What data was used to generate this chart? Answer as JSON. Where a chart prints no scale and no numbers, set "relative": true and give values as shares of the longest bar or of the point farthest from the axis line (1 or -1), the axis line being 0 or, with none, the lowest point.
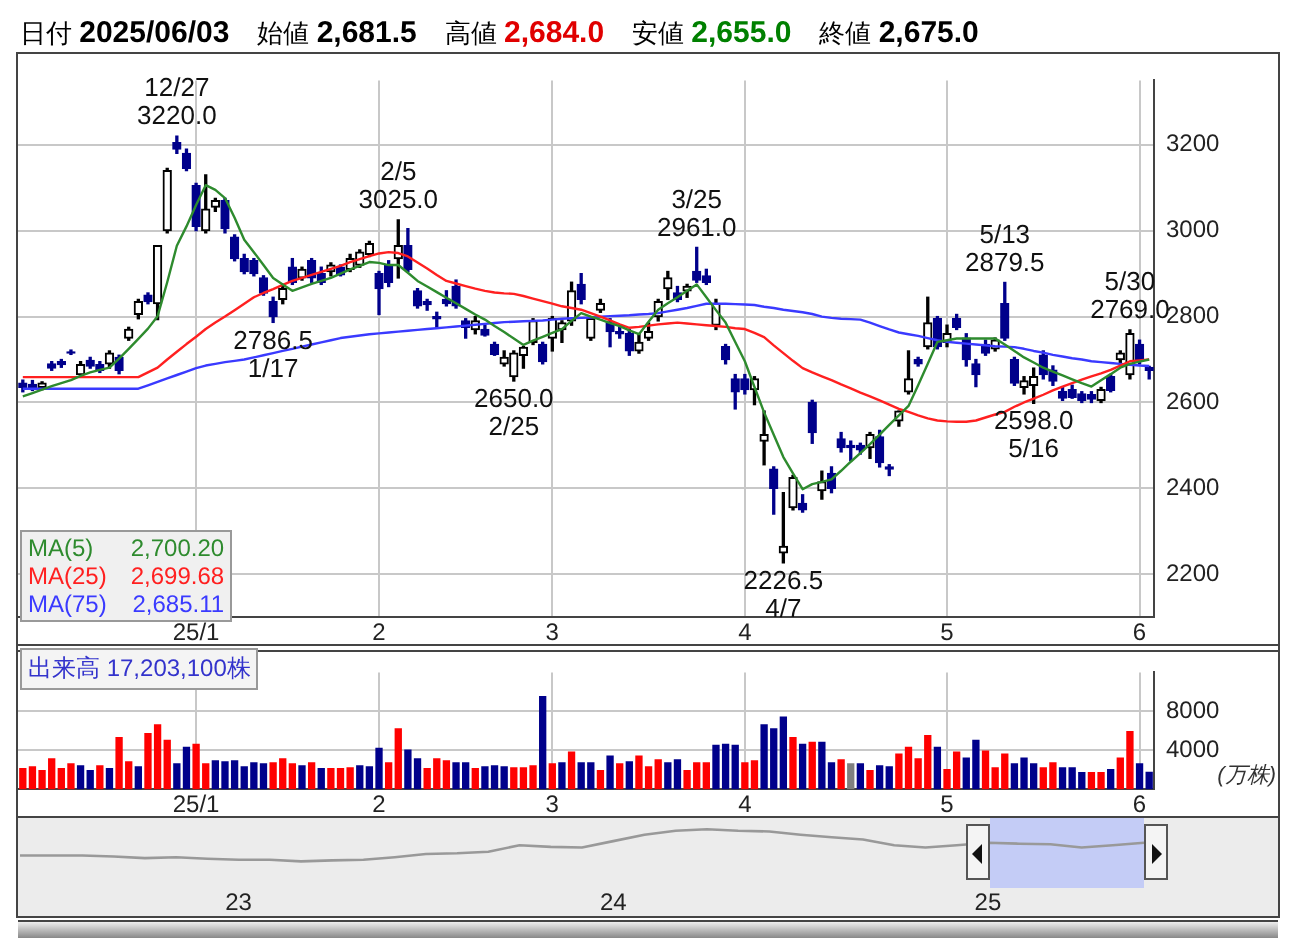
{
  "chart_data": [
    {
      "type": "candlestick",
      "annotations": [
        "日付 2025/06/03",
        "始値 2,681.5",
        "高値 2,684.0",
        "安値 2,655.0",
        "終値 2,675.0",
        {
          "text": "12/27\n3220.0",
          "y": 3220
        },
        {
          "text": "2786.5\n1/17",
          "y": 2786.5
        },
        {
          "text": "2/5\n3025.0",
          "y": 3025
        },
        {
          "text": "2650.0\n2/25",
          "y": 2650
        },
        {
          "text": "3/25\n2961.0",
          "y": 2961
        },
        {
          "text": "2226.5\n4/7",
          "y": 2226.5
        },
        {
          "text": "5/13\n2879.5",
          "y": 2879.5
        },
        {
          "text": "2598.0\n5/16",
          "y": 2598
        },
        {
          "text": "5/30\n2769.0",
          "y": 2769
        }
      ],
      "categories": [
        null,
        null,
        null,
        null,
        null,
        null,
        null,
        null,
        null,
        null,
        null,
        null,
        null,
        null,
        null,
        null,
        null,
        null,
        "25/1",
        null,
        null,
        null,
        null,
        null,
        null,
        null,
        null,
        null,
        null,
        null,
        null,
        null,
        null,
        null,
        null,
        null,
        null,
        "2",
        null,
        null,
        null,
        null,
        null,
        null,
        null,
        null,
        null,
        null,
        null,
        null,
        null,
        null,
        null,
        null,
        null,
        "3",
        null,
        null,
        null,
        null,
        null,
        null,
        null,
        null,
        null,
        null,
        null,
        null,
        null,
        null,
        null,
        null,
        null,
        null,
        null,
        "4",
        null,
        null,
        null,
        null,
        null,
        null,
        null,
        null,
        null,
        null,
        null,
        null,
        null,
        null,
        null,
        null,
        null,
        null,
        null,
        null,
        "5",
        null,
        null,
        null,
        null,
        null,
        null,
        null,
        null,
        null,
        null,
        null,
        null,
        null,
        null,
        null,
        null,
        null,
        null,
        null,
        "6",
        null
      ],
      "ohlc": [
        [
          2645,
          2652,
          2625,
          2635
        ],
        [
          2642,
          2651,
          2628,
          2635
        ],
        [
          2635,
          2648,
          2630,
          2645
        ],
        [
          2690,
          2695,
          2675,
          2680
        ],
        [
          2695,
          2700,
          2682,
          2688
        ],
        [
          2718,
          2722,
          2712,
          2715
        ],
        [
          2665,
          2695,
          2660,
          2688
        ],
        [
          2698,
          2705,
          2680,
          2685
        ],
        [
          2688,
          2695,
          2670,
          2675
        ],
        [
          2690,
          2720,
          2680,
          2715
        ],
        [
          2705,
          2710,
          2667,
          2675
        ],
        [
          2750,
          2775,
          2745,
          2770
        ],
        [
          2805,
          2840,
          2795,
          2835
        ],
        [
          2850,
          2855,
          2830,
          2835
        ],
        [
          2830,
          2965,
          2793,
          2965
        ],
        [
          3000,
          3145,
          2995,
          3140
        ],
        [
          3205,
          3220,
          3180,
          3190
        ],
        [
          3180,
          3190,
          3140,
          3145
        ],
        [
          3105,
          3110,
          3000,
          3010
        ],
        [
          3000,
          3130,
          2995,
          3050
        ],
        [
          3055,
          3075,
          3045,
          3070
        ],
        [
          3070,
          3075,
          2995,
          3005
        ],
        [
          2985,
          2990,
          2930,
          2935
        ],
        [
          2935,
          2945,
          2900,
          2905
        ],
        [
          2930,
          2935,
          2895,
          2900
        ],
        [
          2890,
          2895,
          2850,
          2855
        ],
        [
          2835,
          2845,
          2786.5,
          2800
        ],
        [
          2840,
          2870,
          2830,
          2865
        ],
        [
          2915,
          2935,
          2875,
          2880
        ],
        [
          2890,
          2915,
          2885,
          2910
        ],
        [
          2930,
          2935,
          2880,
          2890
        ],
        [
          2900,
          2915,
          2875,
          2880
        ],
        [
          2905,
          2925,
          2895,
          2920
        ],
        [
          2915,
          2920,
          2895,
          2897
        ],
        [
          2910,
          2945,
          2905,
          2935
        ],
        [
          2920,
          2955,
          2915,
          2950
        ],
        [
          2945,
          2975,
          2940,
          2970
        ],
        [
          2900,
          2905,
          2805,
          2865
        ],
        [
          2920,
          2930,
          2870,
          2880
        ],
        [
          2935,
          3025,
          2890,
          2965
        ],
        [
          2965,
          3005,
          2905,
          2910
        ],
        [
          2860,
          2865,
          2820,
          2825
        ],
        [
          2835,
          2840,
          2815,
          2828
        ],
        [
          2800,
          2810,
          2775,
          2795
        ],
        [
          2840,
          2860,
          2825,
          2830
        ],
        [
          2870,
          2885,
          2820,
          2825
        ],
        [
          2790,
          2795,
          2750,
          2775
        ],
        [
          2770,
          2800,
          2760,
          2790
        ],
        [
          2770,
          2780,
          2755,
          2757
        ],
        [
          2735,
          2740,
          2710,
          2712
        ],
        [
          2690,
          2720,
          2685,
          2705
        ],
        [
          2660,
          2720,
          2650,
          2715
        ],
        [
          2710,
          2730,
          2680,
          2728
        ],
        [
          2740,
          2795,
          2735,
          2790
        ],
        [
          2735,
          2740,
          2690,
          2695
        ],
        [
          2750,
          2800,
          2720,
          2795
        ],
        [
          2770,
          2790,
          2740,
          2785
        ],
        [
          2790,
          2880,
          2780,
          2860
        ],
        [
          2875,
          2900,
          2830,
          2840
        ],
        [
          2750,
          2800,
          2745,
          2795
        ],
        [
          2815,
          2840,
          2810,
          2830
        ],
        [
          2785,
          2795,
          2730,
          2765
        ],
        [
          2765,
          2775,
          2750,
          2760
        ],
        [
          2760,
          2770,
          2710,
          2720
        ],
        [
          2720,
          2760,
          2715,
          2740
        ],
        [
          2750,
          2785,
          2745,
          2765
        ],
        [
          2800,
          2840,
          2790,
          2835
        ],
        [
          2865,
          2905,
          2840,
          2890
        ],
        [
          2855,
          2870,
          2835,
          2840
        ],
        [
          2860,
          2875,
          2845,
          2870
        ],
        [
          2905,
          2961,
          2880,
          2885
        ],
        [
          2895,
          2910,
          2875,
          2880
        ],
        [
          2780,
          2840,
          2770,
          2830
        ],
        [
          2730,
          2735,
          2690,
          2700
        ],
        [
          2655,
          2665,
          2585,
          2625
        ],
        [
          2655,
          2665,
          2620,
          2630
        ],
        [
          2630,
          2660,
          2595,
          2655
        ],
        [
          2510,
          2580,
          2455,
          2525
        ],
        [
          2445,
          2450,
          2340,
          2400
        ],
        [
          2250,
          2390,
          2226.5,
          2265
        ],
        [
          2355,
          2430,
          2350,
          2425
        ],
        [
          2365,
          2385,
          2345,
          2350
        ],
        [
          2600,
          2605,
          2505,
          2530
        ],
        [
          2395,
          2440,
          2375,
          2415
        ],
        [
          2435,
          2450,
          2390,
          2400
        ],
        [
          2515,
          2530,
          2485,
          2495
        ],
        [
          2500,
          2510,
          2465,
          2495
        ],
        [
          2500,
          2505,
          2480,
          2490
        ],
        [
          2495,
          2530,
          2470,
          2525
        ],
        [
          2520,
          2535,
          2450,
          2460
        ],
        [
          2450,
          2455,
          2430,
          2445
        ],
        [
          2557,
          2580,
          2545,
          2580
        ],
        [
          2625,
          2720,
          2620,
          2655
        ],
        [
          2700,
          2705,
          2685,
          2690
        ],
        [
          2730,
          2845,
          2725,
          2785
        ],
        [
          2795,
          2800,
          2725,
          2730
        ],
        [
          2740,
          2780,
          2730,
          2760
        ],
        [
          2795,
          2805,
          2770,
          2775
        ],
        [
          2750,
          2760,
          2685,
          2700
        ],
        [
          2690,
          2700,
          2637,
          2665
        ],
        [
          2735,
          2745,
          2710,
          2715
        ],
        [
          2725,
          2750,
          2720,
          2745
        ],
        [
          2830,
          2879.5,
          2745,
          2750
        ],
        [
          2700,
          2705,
          2640,
          2645
        ],
        [
          2635,
          2660,
          2620,
          2650
        ],
        [
          2640,
          2680,
          2598,
          2660
        ],
        [
          2710,
          2720,
          2655,
          2665
        ],
        [
          2675,
          2685,
          2640,
          2650
        ],
        [
          2625,
          2635,
          2605,
          2610
        ],
        [
          2630,
          2640,
          2610,
          2612
        ],
        [
          2620,
          2625,
          2600,
          2605
        ],
        [
          2618,
          2625,
          2600,
          2608
        ],
        [
          2605,
          2635,
          2600,
          2630
        ],
        [
          2660,
          2665,
          2625,
          2628
        ],
        [
          2700,
          2720,
          2690,
          2715
        ],
        [
          2665,
          2769,
          2655,
          2760
        ],
        [
          2735,
          2745,
          2690,
          2700
        ],
        [
          2681.5,
          2684,
          2655,
          2675
        ]
      ],
      "colors": [
        "#00008b",
        "#00008b",
        "#000000",
        "#00008b",
        "#00008b",
        "#00008b",
        "#000000",
        "#00008b",
        "#00008b",
        "#000000",
        "#00008b",
        "#000000",
        "#000000",
        "#00008b",
        "#000000",
        "#000000",
        "#00008b",
        "#00008b",
        "#00008b",
        "#000000",
        "#000000",
        "#00008b",
        "#00008b",
        "#00008b",
        "#00008b",
        "#00008b",
        "#00008b",
        "#000000",
        "#00008b",
        "#000000",
        "#00008b",
        "#00008b",
        "#000000",
        "#00008b",
        "#000000",
        "#000000",
        "#000000",
        "#00008b",
        "#00008b",
        "#000000",
        "#00008b",
        "#00008b",
        "#00008b",
        "#00008b",
        "#00008b",
        "#00008b",
        "#00008b",
        "#000000",
        "#00008b",
        "#00008b",
        "#000000",
        "#000000",
        "#000000",
        "#000000",
        "#00008b",
        "#000000",
        "#000000",
        "#000000",
        "#00008b",
        "#000000",
        "#000000",
        "#00008b",
        "#00008b",
        "#00008b",
        "#000000",
        "#000000",
        "#000000",
        "#000000",
        "#00008b",
        "#000000",
        "#00008b",
        "#00008b",
        "#000000",
        "#00008b",
        "#00008b",
        "#00008b",
        "#000000",
        "#000000",
        "#00008b",
        "#000000",
        "#000000",
        "#00008b",
        "#00008b",
        "#000000",
        "#00008b",
        "#00008b",
        "#00008b",
        "#00008b",
        "#000000",
        "#00008b",
        "#00008b",
        "#000000",
        "#000000",
        "#00008b",
        "#000000",
        "#00008b",
        "#000000",
        "#00008b",
        "#00008b",
        "#00008b",
        "#00008b",
        "#000000",
        "#00008b",
        "#00008b",
        "#000000",
        "#000000",
        "#00008b",
        "#00008b",
        "#00008b",
        "#00008b",
        "#00008b",
        "#00008b",
        "#000000",
        "#00008b",
        "#000000",
        "#000000",
        "#00008b",
        "#00008b"
      ],
      "series": [
        {
          "type": "line",
          "name": "MA(5) 2,700.20",
          "color": "#2e8b2e",
          "values": [
            2614,
            2622,
            2630,
            2638,
            2645,
            2652,
            2662,
            2670,
            2676,
            2681,
            2702,
            2725,
            2748,
            2772,
            2801,
            2880,
            2965,
            3010,
            3060,
            3106,
            3095,
            3076,
            3030,
            2979,
            2950,
            2920,
            2890,
            2875,
            2860,
            2868,
            2876,
            2883,
            2890,
            2900,
            2910,
            2918,
            2927,
            2925,
            2920,
            2920,
            2902,
            2883,
            2870,
            2857,
            2844,
            2831,
            2818,
            2805,
            2793,
            2778,
            2764,
            2749,
            2734,
            2744,
            2753,
            2762,
            2771,
            2790,
            2808,
            2800,
            2793,
            2785,
            2778,
            2768,
            2759,
            2788,
            2816,
            2831,
            2845,
            2860,
            2875,
            2845,
            2815,
            2786,
            2741,
            2696,
            2636,
            2577,
            2525,
            2473,
            2435,
            2398,
            2410,
            2415,
            2421,
            2441,
            2462,
            2482,
            2503,
            2525,
            2548,
            2570,
            2592,
            2640,
            2690,
            2741,
            2745,
            2749,
            2749,
            2749,
            2749,
            2749,
            2735,
            2720,
            2705,
            2693,
            2681,
            2672,
            2663,
            2654,
            2645,
            2637,
            2652,
            2666,
            2681,
            2690,
            2695,
            2700
          ]
        },
        {
          "type": "line",
          "name": "MA(25) 2,699.68",
          "color": "#ff2020",
          "values": [
            2659,
            2659,
            2659,
            2659,
            2659,
            2659,
            2659,
            2659,
            2659,
            2659,
            2659,
            2659,
            2659,
            2670,
            2681,
            2700,
            2718,
            2736,
            2753,
            2771,
            2786,
            2800,
            2815,
            2830,
            2845,
            2855,
            2864,
            2874,
            2883,
            2890,
            2897,
            2904,
            2911,
            2918,
            2927,
            2934,
            2941,
            2947,
            2950,
            2948,
            2940,
            2926,
            2912,
            2897,
            2883,
            2877,
            2871,
            2865,
            2860,
            2856,
            2854,
            2853,
            2848,
            2842,
            2836,
            2830,
            2824,
            2820,
            2816,
            2808,
            2800,
            2791,
            2782,
            2774,
            2776,
            2779,
            2782,
            2784,
            2786,
            2784,
            2782,
            2780,
            2778,
            2776,
            2773,
            2771,
            2762,
            2752,
            2733,
            2715,
            2697,
            2680,
            2670,
            2661,
            2652,
            2642,
            2633,
            2623,
            2614,
            2605,
            2595,
            2585,
            2578,
            2570,
            2563,
            2558,
            2556,
            2555,
            2555,
            2558,
            2565,
            2572,
            2578,
            2590,
            2600,
            2609,
            2618,
            2628,
            2637,
            2645,
            2653,
            2661,
            2668,
            2676,
            2686,
            2696,
            2698,
            2700
          ]
        },
        {
          "type": "line",
          "name": "MA(75) 2,685.11",
          "color": "#3a3aff",
          "values": [
            2632,
            2632,
            2632,
            2632,
            2632,
            2632,
            2632,
            2632,
            2632,
            2632,
            2632,
            2632,
            2632,
            2640,
            2648,
            2656,
            2664,
            2672,
            2680,
            2686,
            2690,
            2694,
            2697,
            2700,
            2705,
            2710,
            2715,
            2720,
            2725,
            2730,
            2735,
            2740,
            2745,
            2750,
            2753,
            2756,
            2759,
            2761,
            2763,
            2765,
            2767,
            2769,
            2771,
            2773,
            2775,
            2777,
            2779,
            2781,
            2783,
            2785,
            2787,
            2788,
            2789,
            2790,
            2791,
            2793,
            2795,
            2796,
            2797,
            2798,
            2800,
            2801,
            2802,
            2803,
            2805,
            2806,
            2808,
            2812,
            2816,
            2820,
            2825,
            2830,
            2830,
            2830,
            2829,
            2828,
            2827,
            2823,
            2820,
            2816,
            2813,
            2810,
            2806,
            2800,
            2797,
            2795,
            2794,
            2793,
            2786,
            2778,
            2770,
            2763,
            2759,
            2755,
            2750,
            2745,
            2741,
            2739,
            2737,
            2735,
            2733,
            2731,
            2730,
            2729,
            2725,
            2720,
            2716,
            2711,
            2707,
            2703,
            2700,
            2696,
            2694,
            2692,
            2690,
            2688,
            2686,
            2685
          ]
        }
      ],
      "ylim": [
        2100,
        3350
      ],
      "yticks": [
        2200,
        2400,
        2600,
        2800,
        3000,
        3200
      ],
      "grid": true,
      "legend": "bottom left"
    },
    {
      "type": "bar",
      "title": "出来高 17,203,100株",
      "ylabel": "(万株)",
      "categories": [
        null,
        null,
        null,
        null,
        null,
        null,
        null,
        null,
        null,
        null,
        null,
        null,
        null,
        null,
        null,
        null,
        null,
        null,
        "25/1",
        null,
        null,
        null,
        null,
        null,
        null,
        null,
        null,
        null,
        null,
        null,
        null,
        null,
        null,
        null,
        null,
        null,
        null,
        "2",
        null,
        null,
        null,
        null,
        null,
        null,
        null,
        null,
        null,
        null,
        null,
        null,
        null,
        null,
        null,
        null,
        null,
        "3",
        null,
        null,
        null,
        null,
        null,
        null,
        null,
        null,
        null,
        null,
        null,
        null,
        null,
        null,
        null,
        null,
        null,
        null,
        null,
        "4",
        null,
        null,
        null,
        null,
        null,
        null,
        null,
        null,
        null,
        null,
        null,
        null,
        null,
        null,
        null,
        null,
        null,
        null,
        null,
        null,
        "5",
        null,
        null,
        null,
        null,
        null,
        null,
        null,
        null,
        null,
        null,
        null,
        null,
        null,
        null,
        null,
        null,
        null,
        null,
        null,
        "6",
        null
      ],
      "values": [
        2100,
        2300,
        1900,
        3100,
        2100,
        2600,
        2400,
        1900,
        2400,
        2100,
        5300,
        2800,
        2300,
        5700,
        6600,
        5000,
        2600,
        4300,
        4600,
        2600,
        2900,
        2800,
        2900,
        2300,
        2700,
        2600,
        2700,
        3100,
        2600,
        2400,
        2700,
        2100,
        2100,
        2100,
        2200,
        2400,
        2300,
        4200,
        2700,
        6200,
        4000,
        3100,
        2100,
        3100,
        2900,
        2700,
        2700,
        2100,
        2300,
        2400,
        2300,
        2200,
        2200,
        2400,
        9500,
        2600,
        2700,
        3800,
        2700,
        2700,
        1900,
        3400,
        2600,
        2800,
        3400,
        2300,
        3000,
        2700,
        3000,
        1900,
        2700,
        2700,
        4500,
        4600,
        4500,
        2700,
        2900,
        6600,
        6200,
        7400,
        5300,
        4600,
        4800,
        4800,
        2700,
        3000,
        2600,
        2600,
        1900,
        2400,
        2300,
        3600,
        4300,
        3100,
        5500,
        4300,
        2000,
        3800,
        3200,
        5000,
        3900,
        2200,
        3600,
        2600,
        3200,
        2600,
        2200,
        2700,
        2200,
        2200,
        1700,
        1700,
        1700,
        2000,
        3200,
        5900,
        2600,
        1720
      ],
      "colors": [
        "#ff0000",
        "#ff0000",
        "#ff0000",
        "#ff0000",
        "#ff0000",
        "#ff0000",
        "#00008b",
        "#00008b",
        "#ff0000",
        "#00008b",
        "#ff0000",
        "#ff0000",
        "#00008b",
        "#ff0000",
        "#ff0000",
        "#ff0000",
        "#00008b",
        "#00008b",
        "#ff0000",
        "#ff0000",
        "#00008b",
        "#00008b",
        "#00008b",
        "#00008b",
        "#00008b",
        "#00008b",
        "#ff0000",
        "#ff0000",
        "#ff0000",
        "#00008b",
        "#ff0000",
        "#00008b",
        "#ff0000",
        "#ff0000",
        "#ff0000",
        "#00008b",
        "#00008b",
        "#00008b",
        "#ff0000",
        "#ff0000",
        "#00008b",
        "#00008b",
        "#ff0000",
        "#ff0000",
        "#ff0000",
        "#00008b",
        "#00008b",
        "#ff0000",
        "#00008b",
        "#00008b",
        "#00008b",
        "#ff0000",
        "#ff0000",
        "#ff0000",
        "#00008b",
        "#ff0000",
        "#00008b",
        "#ff0000",
        "#00008b",
        "#00008b",
        "#ff0000",
        "#00008b",
        "#ff0000",
        "#00008b",
        "#ff0000",
        "#ff0000",
        "#ff0000",
        "#00008b",
        "#00008b",
        "#ff0000",
        "#ff0000",
        "#ff0000",
        "#00008b",
        "#00008b",
        "#00008b",
        "#ff0000",
        "#ff0000",
        "#00008b",
        "#00008b",
        "#00008b",
        "#ff0000",
        "#00008b",
        "#ff0000",
        "#00008b",
        "#00008b",
        "#ff0000",
        "#808080",
        "#00008b",
        "#ff0000",
        "#00008b",
        "#00008b",
        "#ff0000",
        "#ff0000",
        "#ff0000",
        "#ff0000",
        "#00008b",
        "#ff0000",
        "#ff0000",
        "#00008b",
        "#00008b",
        "#ff0000",
        "#ff0000",
        "#ff0000",
        "#00008b",
        "#00008b",
        "#00008b",
        "#ff0000",
        "#ff0000",
        "#00008b",
        "#00008b",
        "#00008b",
        "#ff0000",
        "#ff0000",
        "#00008b",
        "#ff0000",
        "#ff0000",
        "#00008b",
        "#00008b"
      ],
      "ylim": [
        0,
        12000
      ],
      "yticks": [
        4000,
        8000
      ],
      "grid": true
    },
    {
      "type": "line",
      "relative": true,
      "color": "#999999",
      "categories": [
        null,
        null,
        null,
        null,
        null,
        null,
        null,
        "23",
        null,
        null,
        null,
        null,
        null,
        null,
        null,
        null,
        null,
        null,
        null,
        "24",
        null,
        null,
        null,
        null,
        null,
        null,
        null,
        null,
        null,
        null,
        null,
        "25",
        null,
        null,
        null,
        null,
        null
      ],
      "values": [
        0.18,
        0.18,
        0.18,
        0.15,
        0.1,
        0.13,
        0.08,
        0.05,
        0.05,
        0,
        0.03,
        0.05,
        0.13,
        0.23,
        0.25,
        0.3,
        0.5,
        0.45,
        0.43,
        0.63,
        0.83,
        0.95,
        1,
        0.95,
        0.93,
        0.83,
        0.75,
        0.68,
        0.5,
        0.43,
        0.5,
        0.58,
        0.55,
        0.53,
        0.43,
        0.5,
        0.58
      ]
    }
  ]
}
